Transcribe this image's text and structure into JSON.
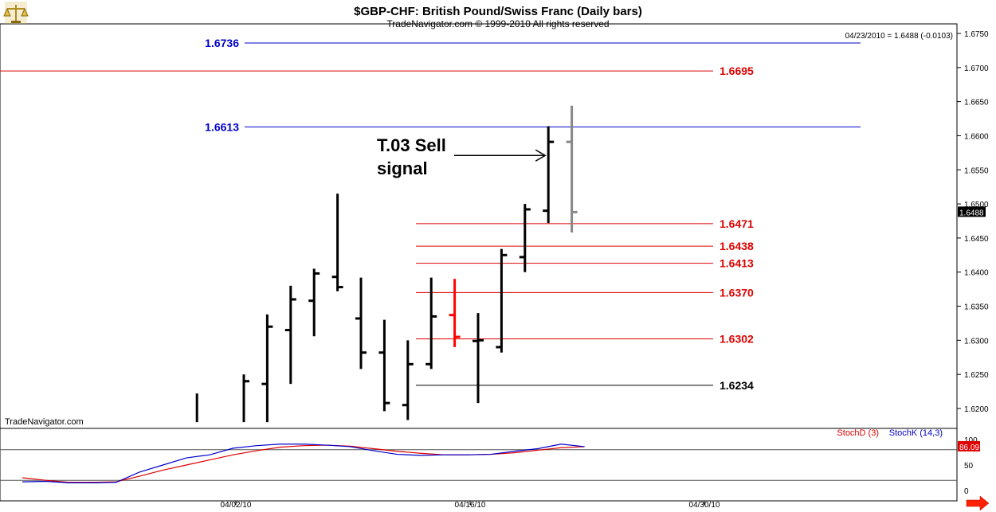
{
  "header": {
    "title": "$GBP-CHF:  British Pound/Swiss Franc  (Daily bars)",
    "copyright": "TradeNavigator.com © 1999-2010 All rights reserved",
    "readout": "04/23/2010 = 1.6488 (-0.0103)",
    "watermark": "TradeNavigator.com",
    "logo_icon": "scales-logo-icon",
    "nav_arrow_icon": "right-arrow-icon"
  },
  "chart_data": [
    {
      "type": "ohlc",
      "title": "$GBP-CHF:  British Pound/Swiss Franc  (Daily bars)",
      "ylim": [
        1.618,
        1.676
      ],
      "y_ticks": [
        "1.6750",
        "1.6700",
        "1.6650",
        "1.6600",
        "1.6550",
        "1.6500",
        "1.6450",
        "1.6400",
        "1.6350",
        "1.6300",
        "1.6250",
        "1.6200"
      ],
      "x_ticks": [
        {
          "label": "04/02/10",
          "index": 10
        },
        {
          "label": "04/16/10",
          "index": 20
        },
        {
          "label": "04/30/10",
          "index": 30
        }
      ],
      "last_price": "1.6488",
      "bars": [
        {
          "i": 8,
          "o": null,
          "h": 1.6222,
          "l": 1.618,
          "c": null
        },
        {
          "i": 10,
          "o": null,
          "h": 1.625,
          "l": 1.618,
          "c": 1.624
        },
        {
          "i": 11,
          "o": 1.6236,
          "h": 1.6338,
          "l": 1.618,
          "c": 1.632
        },
        {
          "i": 12,
          "o": 1.6315,
          "h": 1.638,
          "l": 1.6236,
          "c": 1.636
        },
        {
          "i": 13,
          "o": 1.6358,
          "h": 1.6405,
          "l": 1.6306,
          "c": 1.6398
        },
        {
          "i": 14,
          "o": 1.6393,
          "h": 1.6515,
          "l": 1.6372,
          "c": 1.6378
        },
        {
          "i": 15,
          "o": 1.6332,
          "h": 1.6392,
          "l": 1.6258,
          "c": 1.6282
        },
        {
          "i": 16,
          "o": 1.6282,
          "h": 1.633,
          "l": 1.6196,
          "c": 1.6208
        },
        {
          "i": 17,
          "o": 1.6205,
          "h": 1.63,
          "l": 1.6183,
          "c": 1.6265
        },
        {
          "i": 18,
          "o": 1.6265,
          "h": 1.6392,
          "l": 1.6258,
          "c": 1.6335
        },
        {
          "i": 19,
          "o": 1.6337,
          "h": 1.639,
          "l": 1.629,
          "c": 1.6305,
          "color": "#ff0000"
        },
        {
          "i": 20,
          "o": 1.6299,
          "h": 1.634,
          "l": 1.6208,
          "c": 1.63
        },
        {
          "i": 21,
          "o": 1.629,
          "h": 1.6434,
          "l": 1.6282,
          "c": 1.6425
        },
        {
          "i": 22,
          "o": 1.6422,
          "h": 1.65,
          "l": 1.64,
          "c": 1.6492
        },
        {
          "i": 23,
          "o": 1.649,
          "h": 1.6614,
          "l": 1.6472,
          "c": 1.6591
        },
        {
          "i": 24,
          "o": 1.6591,
          "h": 1.6644,
          "l": 1.6458,
          "c": 1.6488,
          "color": "#888888"
        }
      ],
      "levels": [
        {
          "value": 1.6736,
          "label": "1.6736",
          "color": "#0000cc"
        },
        {
          "value": 1.6695,
          "label": "1.6695",
          "color": "#dd0000"
        },
        {
          "value": 1.6613,
          "label": "1.6613",
          "color": "#0000cc"
        },
        {
          "value": 1.6471,
          "label": "1.6471",
          "color": "#dd0000"
        },
        {
          "value": 1.6438,
          "label": "1.6438",
          "color": "#dd0000"
        },
        {
          "value": 1.6413,
          "label": "1.6413",
          "color": "#dd0000"
        },
        {
          "value": 1.637,
          "label": "1.6370",
          "color": "#dd0000"
        },
        {
          "value": 1.6302,
          "label": "1.6302",
          "color": "#dd0000"
        },
        {
          "value": 1.6234,
          "label": "1.6234",
          "color": "#000000"
        }
      ],
      "annotation": {
        "line1": "T.03 Sell",
        "line2": "signal",
        "target_index": 23,
        "target_value": 1.6571
      }
    },
    {
      "type": "line",
      "ylim": [
        0,
        100
      ],
      "y_ticks": [
        "100",
        "50",
        "0"
      ],
      "last_value": "86.09",
      "reference_lines": [
        80,
        20
      ],
      "series": [
        {
          "name": "StochD (3)",
          "color": "#dd0000",
          "x": [
            0,
            1,
            2,
            3,
            4,
            5,
            6,
            7,
            8,
            9,
            10,
            11,
            12,
            13,
            14,
            15,
            16,
            17,
            18,
            19,
            20,
            21,
            22,
            23,
            24
          ],
          "values": [
            25,
            20,
            16,
            16,
            17,
            28,
            40,
            50,
            60,
            70,
            78,
            85,
            88,
            89,
            87,
            82,
            77,
            73,
            70,
            70,
            71,
            74,
            79,
            84,
            86
          ]
        },
        {
          "name": "StochK (14,3)",
          "color": "#0000cc",
          "x": [
            0,
            1,
            2,
            3,
            4,
            5,
            6,
            7,
            8,
            9,
            10,
            11,
            12,
            13,
            14,
            15,
            16,
            17,
            18,
            19,
            20,
            21,
            22,
            23,
            24
          ],
          "values": [
            17,
            18,
            15,
            15,
            16,
            36,
            50,
            64,
            70,
            83,
            88,
            91,
            91,
            89,
            86,
            78,
            71,
            69,
            70,
            70,
            71,
            77,
            82,
            91,
            86
          ]
        }
      ]
    }
  ]
}
